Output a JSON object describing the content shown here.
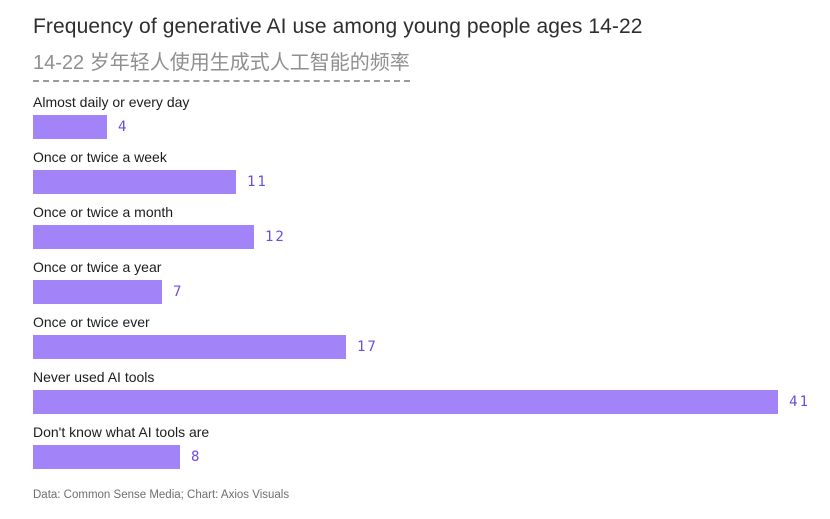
{
  "chart_data": {
    "type": "bar",
    "orientation": "horizontal",
    "title": "Frequency of generative AI use among young people ages 14-22",
    "subtitle_zh": "14-22 岁年轻人使用生成式人工智能的频率",
    "categories": [
      "Almost daily or every day",
      "Once or twice a week",
      "Once or twice a month",
      "Once or twice a year",
      "Once or twice ever",
      "Never used AI tools",
      "Don't know what AI tools are"
    ],
    "values": [
      4,
      11,
      12,
      7,
      17,
      41,
      8
    ],
    "xlim": [
      0,
      41
    ],
    "grid": false,
    "legend": "none",
    "bar_color": "#a284f8",
    "value_label_color": "#6d4be2",
    "footer": "Data: Common Sense Media; Chart: Axios Visuals"
  }
}
